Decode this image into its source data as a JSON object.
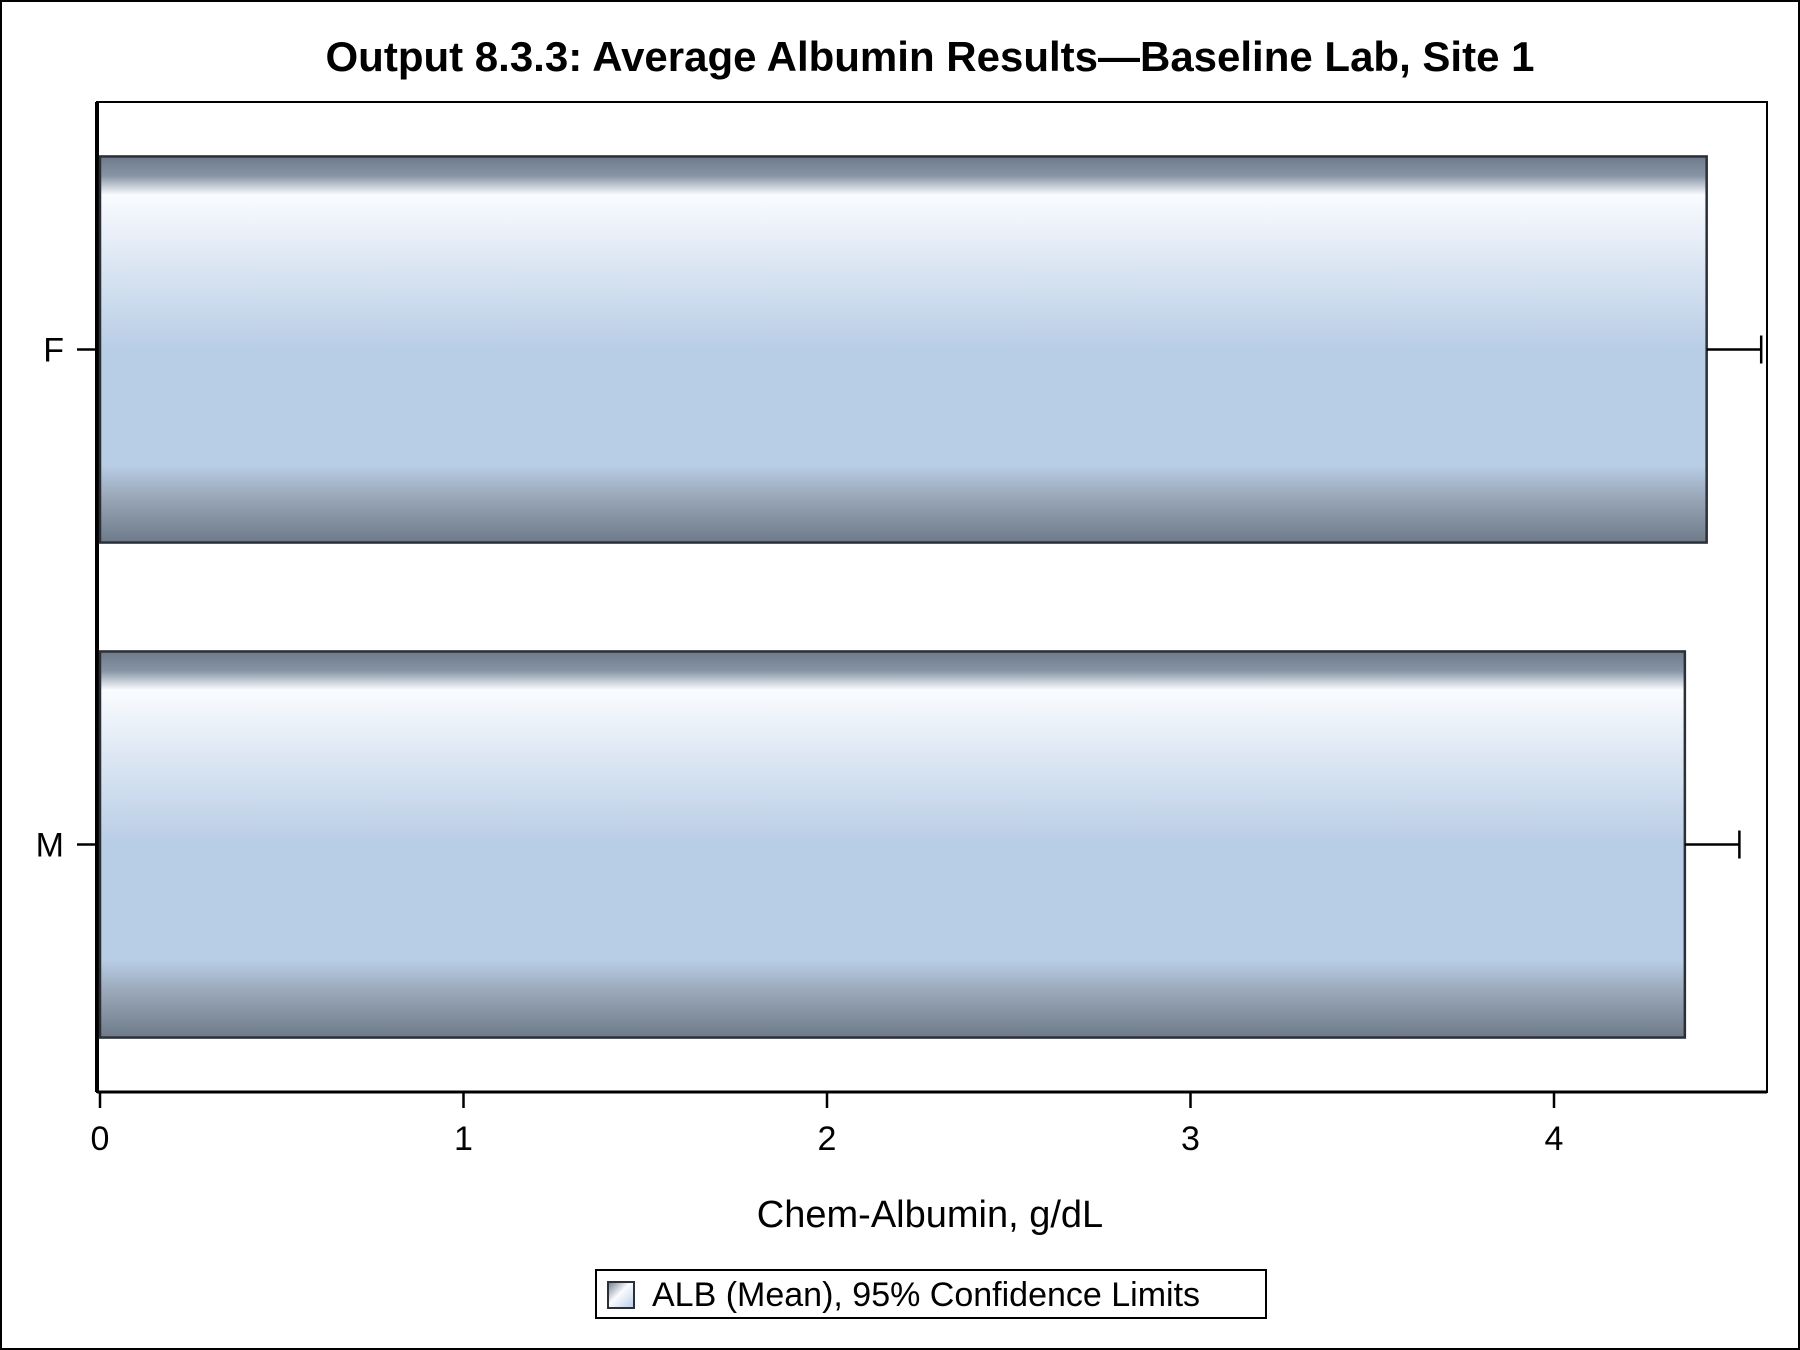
{
  "chart_data": {
    "type": "bar",
    "orientation": "horizontal",
    "title": "Output 8.3.3: Average Albumin Results—Baseline Lab, Site 1",
    "xlabel": "Chem-Albumin, g/dL",
    "ylabel": "",
    "categories": [
      "F",
      "M"
    ],
    "series": [
      {
        "name": "ALB (Mean), 95% Confidence Limits",
        "values": [
          4.42,
          4.36
        ],
        "upper_limits": [
          4.57,
          4.51
        ]
      }
    ],
    "xlim": [
      0,
      4.6
    ],
    "xticks": [
      "0",
      "1",
      "2",
      "3",
      "4"
    ],
    "grid": false,
    "legend_position": "bottom",
    "colors": {
      "bar_light": "#fafcff",
      "bar_mid": "#b8cde6",
      "bar_dark": "#6e7a8a",
      "bar_edge": "#2b3038",
      "axis": "#000000"
    }
  }
}
